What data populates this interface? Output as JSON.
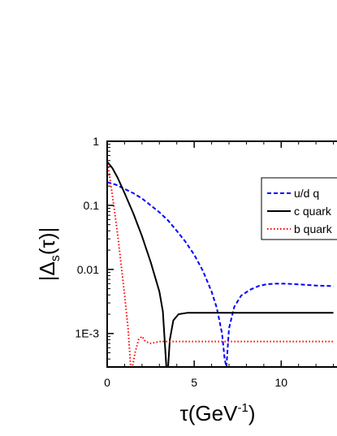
{
  "chart_data": {
    "type": "line",
    "title": "",
    "xlabel": {
      "base": "τ(GeV",
      "sup": "-1",
      "close": ")"
    },
    "ylabel": {
      "open": "|Δ",
      "sub": "s",
      "close": "(τ)|"
    },
    "xlim": [
      0,
      14
    ],
    "ylim": [
      0.0003,
      1
    ],
    "y_scale": "log",
    "x_ticks": [
      {
        "value": 0,
        "label": "0"
      },
      {
        "value": 5,
        "label": "5"
      },
      {
        "value": 10,
        "label": "10"
      }
    ],
    "y_ticks": [
      {
        "value": 1,
        "label": "1"
      },
      {
        "value": 0.1,
        "label": "0.1"
      },
      {
        "value": 0.01,
        "label": "0.01"
      },
      {
        "value": 0.001,
        "label": "1E-3"
      }
    ],
    "legend_position": "right",
    "series": [
      {
        "name": "u/d q",
        "color": "#0000ff",
        "dash": "dashed",
        "x": [
          0,
          0.5,
          1,
          1.5,
          2,
          2.5,
          3,
          3.5,
          4,
          4.5,
          5,
          5.5,
          6,
          6.3,
          6.6,
          6.75,
          6.85,
          7.0,
          7.3,
          7.7,
          8.2,
          8.7,
          9.2,
          9.7,
          10.2,
          10.7,
          11.2,
          12,
          13
        ],
        "y": [
          0.23,
          0.21,
          0.18,
          0.155,
          0.128,
          0.1,
          0.078,
          0.058,
          0.04,
          0.027,
          0.017,
          0.0095,
          0.0045,
          0.0025,
          0.001,
          0.0004,
          0.0003,
          0.0012,
          0.0026,
          0.0039,
          0.0048,
          0.0055,
          0.0059,
          0.006,
          0.006,
          0.0059,
          0.0058,
          0.0056,
          0.0055
        ]
      },
      {
        "name": "c quark",
        "color": "#000000",
        "dash": "solid",
        "x": [
          0,
          0.3,
          0.6,
          1,
          1.5,
          2,
          2.5,
          3,
          3.2,
          3.4,
          3.5,
          3.6,
          3.8,
          4.1,
          4.6,
          5.5,
          7,
          9,
          11,
          13
        ],
        "y": [
          0.48,
          0.38,
          0.27,
          0.155,
          0.075,
          0.033,
          0.013,
          0.0045,
          0.0022,
          0.0003,
          0.0003,
          0.0008,
          0.0016,
          0.002,
          0.0021,
          0.0021,
          0.0021,
          0.0021,
          0.0021,
          0.0021
        ]
      },
      {
        "name": "b quark",
        "color": "#ff0000",
        "dash": "dotted",
        "x": [
          0,
          0.2,
          0.4,
          0.6,
          0.8,
          1.0,
          1.2,
          1.35,
          1.45,
          1.6,
          1.8,
          2.0,
          2.2,
          2.5,
          3,
          4,
          5,
          6,
          8,
          10,
          12,
          13
        ],
        "y": [
          0.5,
          0.22,
          0.09,
          0.035,
          0.012,
          0.004,
          0.0012,
          0.0003,
          0.0003,
          0.0005,
          0.0008,
          0.0009,
          0.00075,
          0.0007,
          0.00075,
          0.00075,
          0.00075,
          0.00075,
          0.00075,
          0.00075,
          0.00075,
          0.00075
        ]
      }
    ]
  }
}
